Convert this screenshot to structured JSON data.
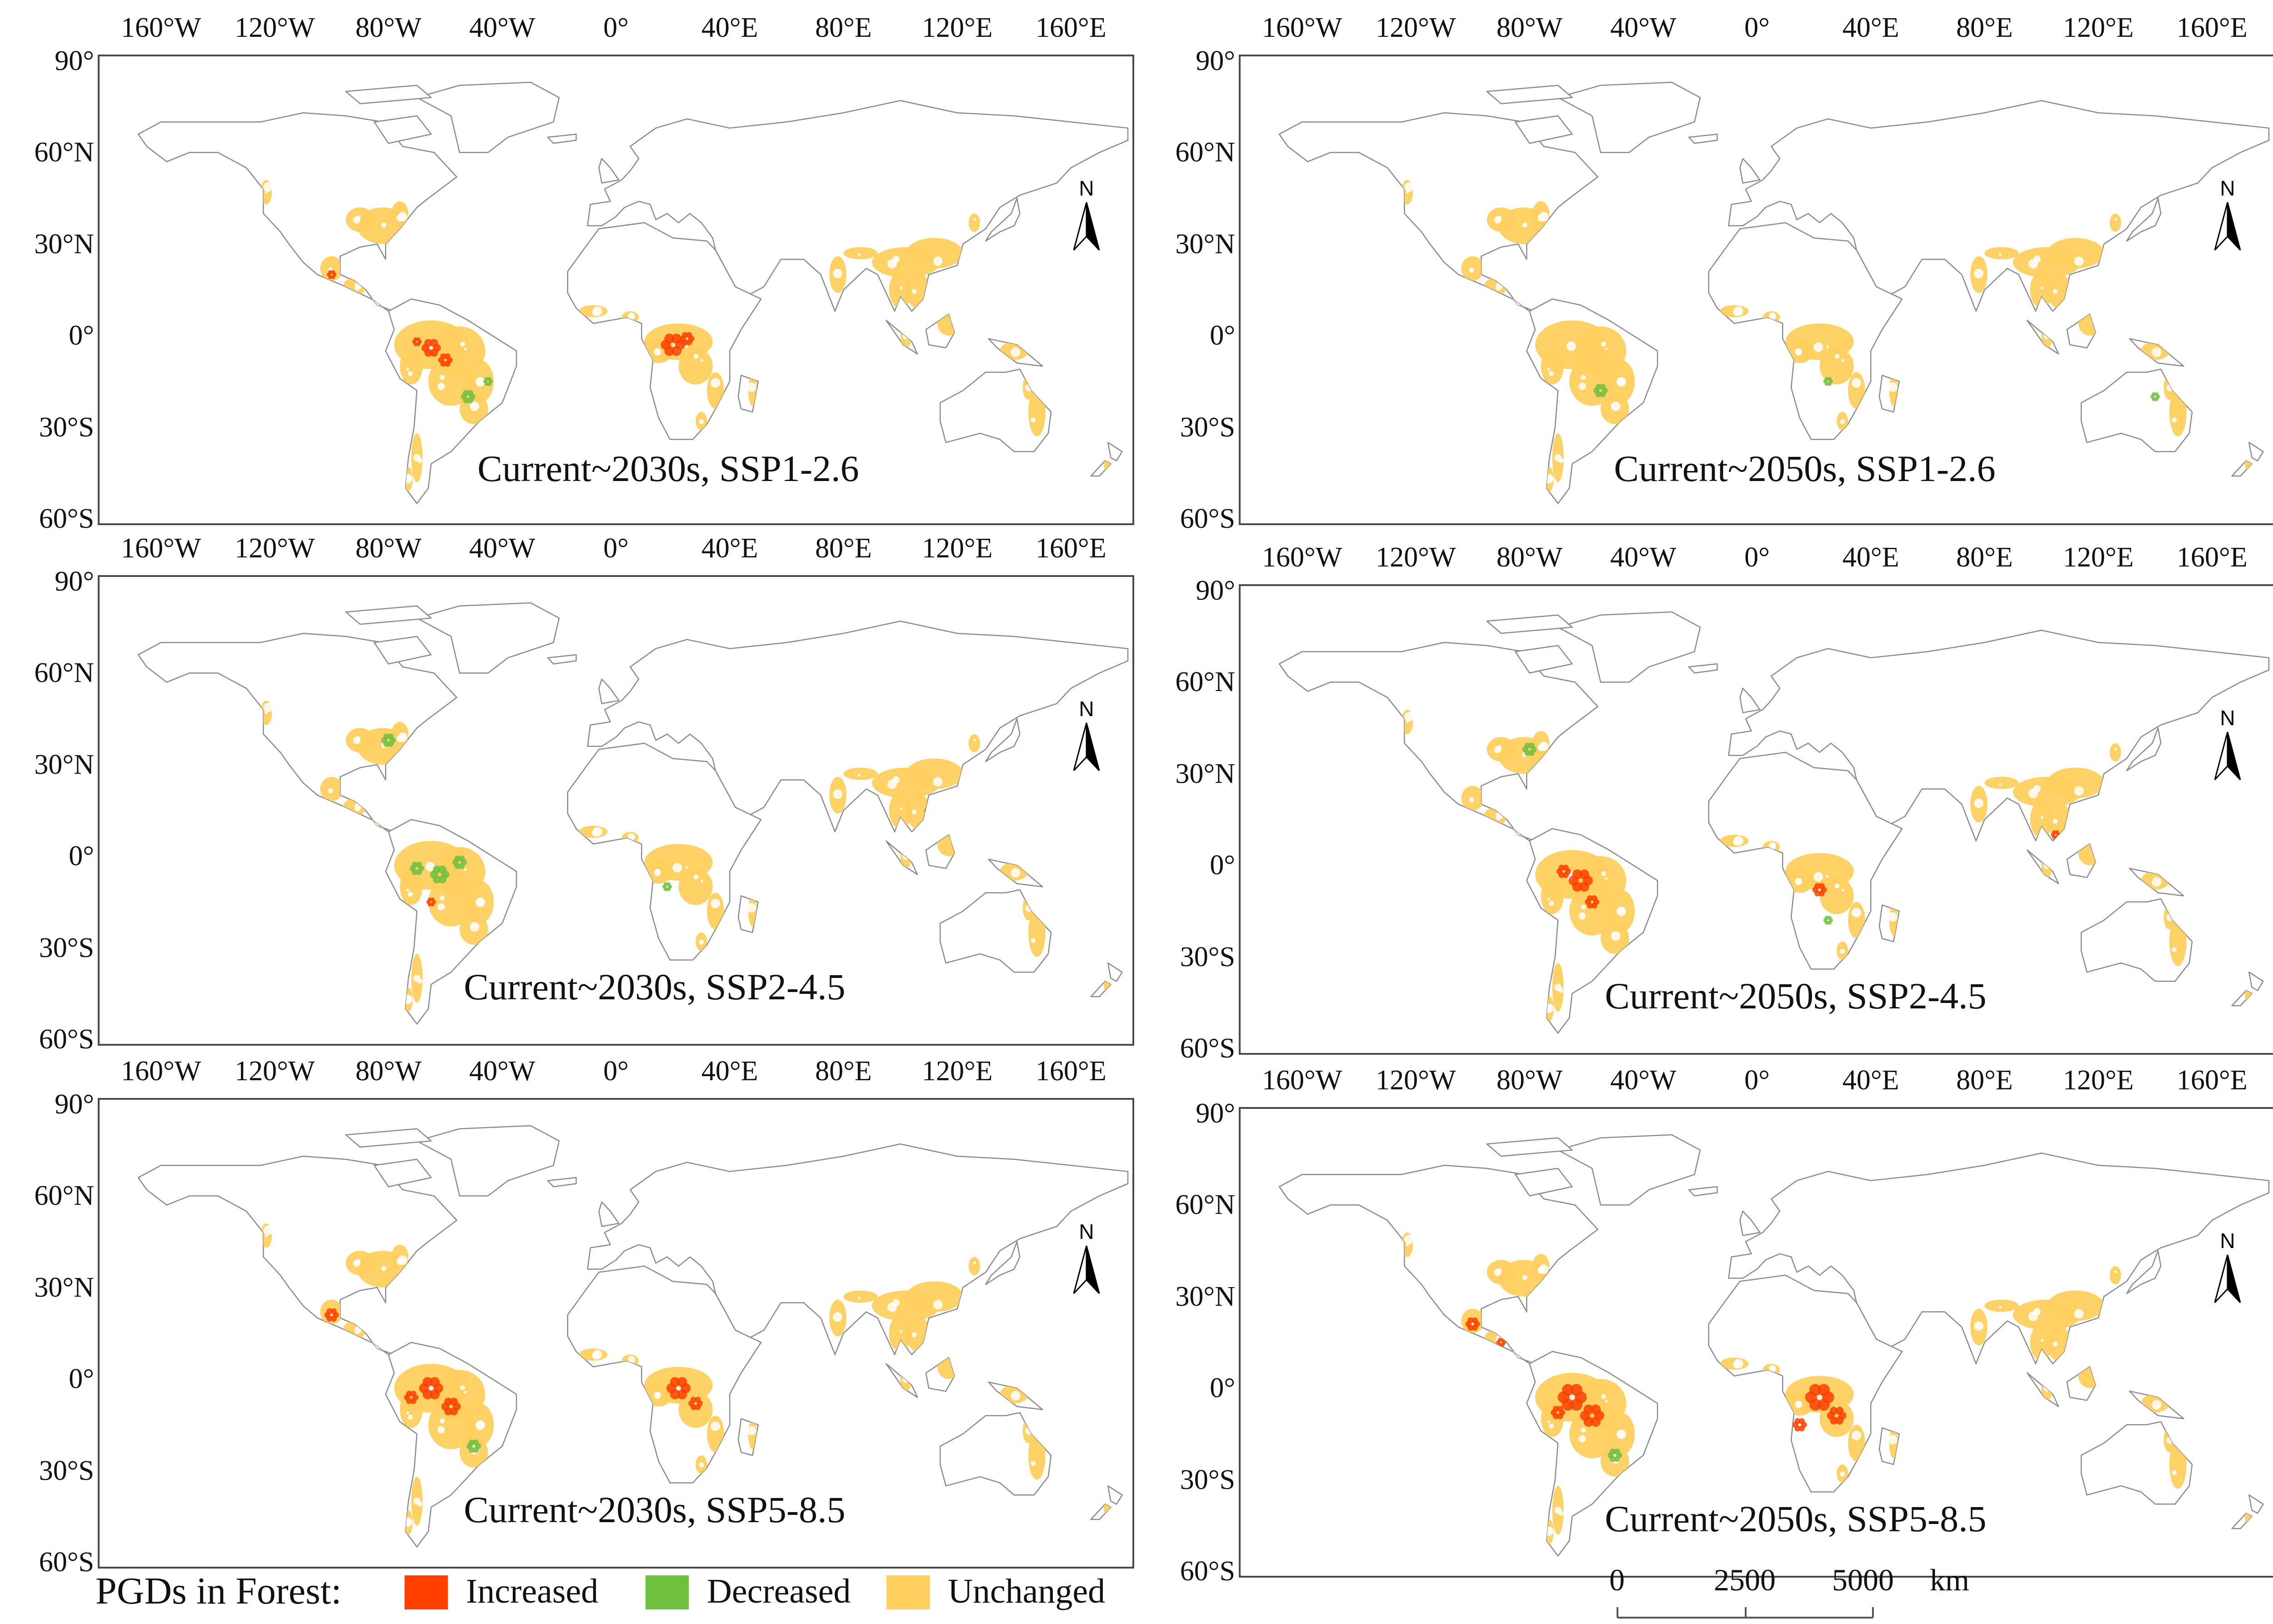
{
  "panels": [
    {
      "title": "Current~2030s, SSP1-2.6",
      "scenario_key": "c2030_ssp126"
    },
    {
      "title": "Current~2050s, SSP1-2.6",
      "scenario_key": "c2050_ssp126"
    },
    {
      "title": "Current~2030s, SSP2-4.5",
      "scenario_key": "c2030_ssp245"
    },
    {
      "title": "Current~2050s, SSP2-4.5",
      "scenario_key": "c2050_ssp245"
    },
    {
      "title": "Current~2030s, SSP5-8.5",
      "scenario_key": "c2030_ssp585"
    },
    {
      "title": "Current~2050s, SSP5-8.5",
      "scenario_key": "c2050_ssp585"
    }
  ],
  "axes": {
    "longitude_ticks": [
      "160°W",
      "120°W",
      "80°W",
      "40°W",
      "0°",
      "40°E",
      "80°E",
      "120°E",
      "160°E"
    ],
    "longitude_values": [
      -160,
      -120,
      -80,
      -40,
      0,
      40,
      80,
      120,
      160
    ],
    "latitude_ticks": [
      "90°",
      "60°N",
      "30°N",
      "0°",
      "30°S",
      "60°S"
    ],
    "latitude_values": [
      90,
      60,
      30,
      0,
      -30,
      -60
    ],
    "lon_range": [
      -180,
      180
    ],
    "lat_range": [
      -60,
      90
    ]
  },
  "north_arrow": {
    "letter": "N"
  },
  "legend": {
    "title": "PGDs in Forest:",
    "items": [
      {
        "label": "Increased",
        "color": "#ff4000"
      },
      {
        "label": "Decreased",
        "color": "#70c040"
      },
      {
        "label": "Unchanged",
        "color": "#ffd060"
      }
    ]
  },
  "scale_bar": {
    "labels": [
      "0",
      "2500",
      "5000"
    ],
    "unit": "km"
  },
  "colors": {
    "increased": "#ff4000",
    "decreased": "#70c040",
    "unchanged": "#ffd060",
    "coastline": "#8a8a8a",
    "frame": "#4a4a4a"
  }
}
